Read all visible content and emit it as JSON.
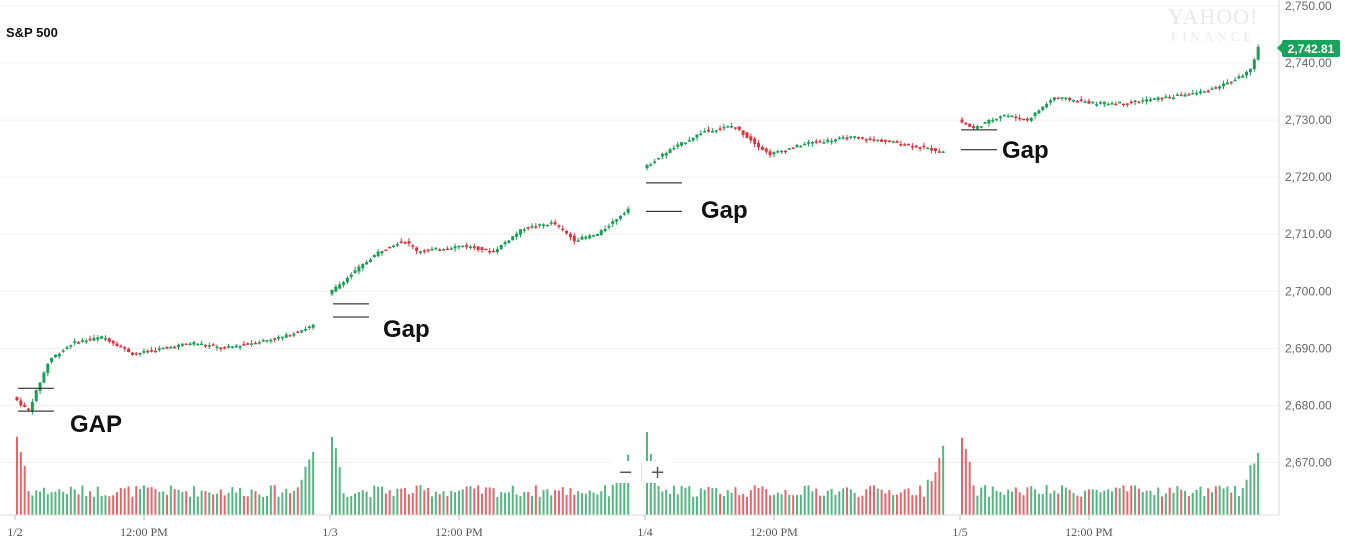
{
  "ticker": "S&P 500",
  "watermark": {
    "line1": "YAHOO!",
    "line2": "FINANCE"
  },
  "last_price": "2,742.81",
  "zoom": {
    "minus": "−",
    "plus": "+"
  },
  "colors": {
    "up": "#1a9e55",
    "down": "#e0303a",
    "grid": "#efefef",
    "badge": "#16a35a"
  },
  "chart_data": {
    "type": "candlestick",
    "title": "S&P 500",
    "ylim": [
      2665,
      2750
    ],
    "y_ticks": [
      "2,750.00",
      "2,740.00",
      "2,730.00",
      "2,720.00",
      "2,710.00",
      "2,700.00",
      "2,690.00",
      "2,680.00",
      "2,670.00"
    ],
    "x_ticks": [
      "1/2",
      "12:00 PM",
      "1/3",
      "12:00 PM",
      "1/4",
      "12:00 PM",
      "1/5",
      "12:00 PM"
    ],
    "series": [
      {
        "name": "Price",
        "x": [
          "1/2 open",
          "1/2 close",
          "1/3 open",
          "1/3 close",
          "1/4 open",
          "1/4 close",
          "1/5 open",
          "1/5 close"
        ],
        "values": [
          2681.5,
          2691.5,
          2699.5,
          2714.5,
          2721.5,
          2724.5,
          2730.0,
          2742.81
        ]
      }
    ],
    "annotations": [
      {
        "label": "GAP",
        "day": "1/2",
        "levels": [
          2683,
          2679
        ]
      },
      {
        "label": "Gap",
        "day": "1/3",
        "levels": [
          2697.8,
          2695.5
        ]
      },
      {
        "label": "Gap",
        "day": "1/4",
        "levels": [
          2719,
          2714
        ]
      },
      {
        "label": "Gap",
        "day": "1/5",
        "levels": [
          2728.3,
          2724.8
        ]
      }
    ]
  }
}
